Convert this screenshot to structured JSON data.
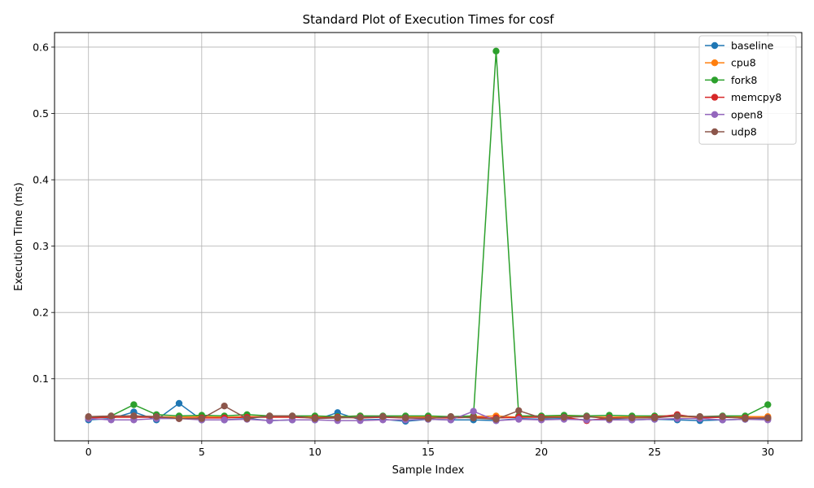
{
  "chart_data": {
    "type": "line",
    "title": "Standard Plot of Execution Times for cosf",
    "xlabel": "Sample Index",
    "ylabel": "Execution Time (ms)",
    "xlim": [
      -1.5,
      31.5
    ],
    "ylim": [
      0.0065,
      0.622
    ],
    "xticks": [
      0,
      5,
      10,
      15,
      20,
      25,
      30
    ],
    "yticks": [
      0.1,
      0.2,
      0.3,
      0.4,
      0.5,
      0.6
    ],
    "xtick_labels": [
      "0",
      "5",
      "10",
      "15",
      "20",
      "25",
      "30"
    ],
    "ytick_labels": [
      "0.1",
      "0.2",
      "0.3",
      "0.4",
      "0.5",
      "0.6"
    ],
    "grid": true,
    "legend_position": "top-right",
    "x": [
      0,
      1,
      2,
      3,
      4,
      5,
      6,
      7,
      8,
      9,
      10,
      11,
      12,
      13,
      14,
      15,
      16,
      17,
      18,
      19,
      20,
      21,
      22,
      23,
      24,
      25,
      26,
      27,
      28,
      29,
      30
    ],
    "series": [
      {
        "name": "baseline",
        "color": "#1f77b4",
        "values": [
          0.038,
          0.04,
          0.05,
          0.038,
          0.063,
          0.038,
          0.038,
          0.04,
          0.037,
          0.038,
          0.038,
          0.049,
          0.038,
          0.039,
          0.036,
          0.039,
          0.038,
          0.038,
          0.037,
          0.04,
          0.039,
          0.04,
          0.038,
          0.039,
          0.038,
          0.039,
          0.038,
          0.037,
          0.038,
          0.039,
          0.04
        ]
      },
      {
        "name": "cpu8",
        "color": "#ff7f0e",
        "values": [
          0.042,
          0.043,
          0.044,
          0.043,
          0.042,
          0.043,
          0.042,
          0.043,
          0.043,
          0.043,
          0.042,
          0.043,
          0.044,
          0.043,
          0.043,
          0.043,
          0.042,
          0.043,
          0.044,
          0.042,
          0.043,
          0.043,
          0.043,
          0.042,
          0.043,
          0.043,
          0.043,
          0.042,
          0.043,
          0.043,
          0.043
        ]
      },
      {
        "name": "fork8",
        "color": "#2ca02c",
        "values": [
          0.042,
          0.044,
          0.061,
          0.046,
          0.044,
          0.045,
          0.044,
          0.046,
          0.044,
          0.044,
          0.044,
          0.043,
          0.044,
          0.044,
          0.044,
          0.044,
          0.043,
          0.044,
          0.594,
          0.044,
          0.044,
          0.045,
          0.044,
          0.045,
          0.044,
          0.044,
          0.044,
          0.043,
          0.044,
          0.044,
          0.061
        ]
      },
      {
        "name": "memcpy8",
        "color": "#d62728",
        "values": [
          0.041,
          0.042,
          0.042,
          0.042,
          0.04,
          0.041,
          0.041,
          0.042,
          0.042,
          0.042,
          0.041,
          0.042,
          0.041,
          0.042,
          0.041,
          0.041,
          0.041,
          0.042,
          0.041,
          0.042,
          0.042,
          0.042,
          0.037,
          0.041,
          0.041,
          0.042,
          0.046,
          0.041,
          0.042,
          0.041,
          0.041
        ]
      },
      {
        "name": "open8",
        "color": "#9467bd",
        "values": [
          0.04,
          0.038,
          0.038,
          0.04,
          0.04,
          0.038,
          0.038,
          0.039,
          0.037,
          0.038,
          0.038,
          0.037,
          0.037,
          0.038,
          0.038,
          0.039,
          0.038,
          0.051,
          0.037,
          0.039,
          0.038,
          0.039,
          0.038,
          0.038,
          0.038,
          0.039,
          0.04,
          0.04,
          0.038,
          0.039,
          0.038
        ]
      },
      {
        "name": "udp8",
        "color": "#8c564b",
        "values": [
          0.043,
          0.044,
          0.044,
          0.043,
          0.04,
          0.04,
          0.059,
          0.04,
          0.044,
          0.044,
          0.04,
          0.041,
          0.042,
          0.043,
          0.041,
          0.04,
          0.043,
          0.041,
          0.039,
          0.052,
          0.041,
          0.042,
          0.043,
          0.04,
          0.041,
          0.041,
          0.044,
          0.043,
          0.043,
          0.04,
          0.041
        ]
      }
    ]
  }
}
